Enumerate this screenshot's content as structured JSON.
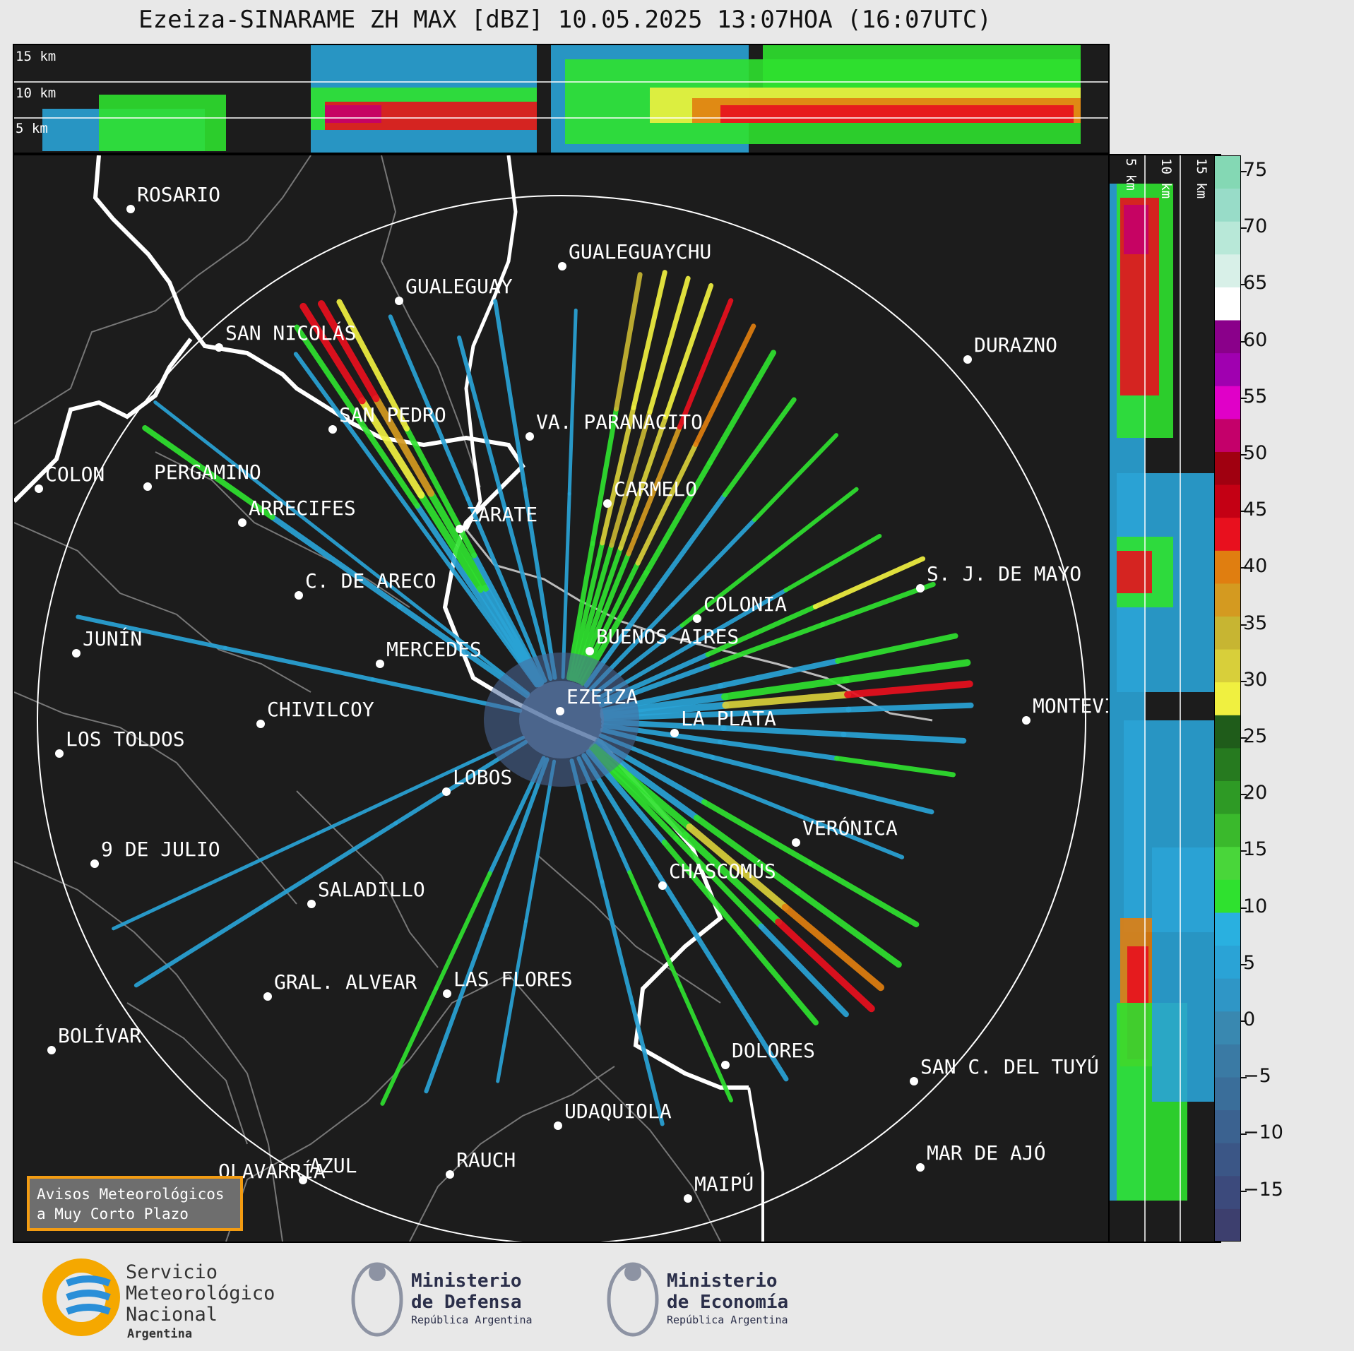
{
  "title": "Ezeiza-SINARAME ZH MAX [dBZ] 10.05.2025 13:07HOA (16:07UTC)",
  "height_labels": [
    "15 km",
    "10 km",
    "5 km"
  ],
  "cities": [
    {
      "name": "ROSARIO"
    },
    {
      "name": "GUALEGUAYCHU"
    },
    {
      "name": "GUALEGUAY"
    },
    {
      "name": "SAN NICOLÁS"
    },
    {
      "name": "DURAZNO"
    },
    {
      "name": "SAN PEDRO"
    },
    {
      "name": "VA. PARANACITO"
    },
    {
      "name": "COLON"
    },
    {
      "name": "PERGAMINO"
    },
    {
      "name": "CARMELO"
    },
    {
      "name": "ARRECIFES"
    },
    {
      "name": "ZÁRATE"
    },
    {
      "name": "S. J. DE MAYO"
    },
    {
      "name": "C. DE ARECO"
    },
    {
      "name": "COLONIA"
    },
    {
      "name": "JUNÍN"
    },
    {
      "name": "BUENOS AIRES"
    },
    {
      "name": "MERCEDES"
    },
    {
      "name": "EZEIZA"
    },
    {
      "name": "MONTEVIDEO"
    },
    {
      "name": "CHIVILCOY"
    },
    {
      "name": "LA PLATA"
    },
    {
      "name": "LOS TOLDOS"
    },
    {
      "name": "LOBOS"
    },
    {
      "name": "VERÓNICA"
    },
    {
      "name": "9 DE JULIO"
    },
    {
      "name": "CHASCOMÚS"
    },
    {
      "name": "SALADILLO"
    },
    {
      "name": "GRAL. ALVEAR"
    },
    {
      "name": "LAS FLORES"
    },
    {
      "name": "BOLÍVAR"
    },
    {
      "name": "DOLORES"
    },
    {
      "name": "SAN C. DEL TUYÚ"
    },
    {
      "name": "UDAQUIOLA"
    },
    {
      "name": "MAR DE AJÓ"
    },
    {
      "name": "AZUL"
    },
    {
      "name": "RAUCH"
    },
    {
      "name": "OLAVARRÍA"
    },
    {
      "name": "MAIPÚ"
    }
  ],
  "avisos": {
    "line1": "Avisos Meteorológicos",
    "line2": "a Muy Corto Plazo"
  },
  "colorbar": {
    "unit": "dBZ",
    "ticks": [
      "75",
      "70",
      "65",
      "60",
      "55",
      "50",
      "45",
      "40",
      "35",
      "30",
      "25",
      "20",
      "15",
      "10",
      "5",
      "0",
      "−5",
      "−10",
      "−15"
    ]
  },
  "logos": {
    "smn": {
      "line1": "Servicio",
      "line2": "Meteorológico",
      "line3": "Nacional",
      "line4": "Argentina"
    },
    "defensa": {
      "line1": "Ministerio",
      "line2": "de Defensa",
      "line3": "República Argentina"
    },
    "economia": {
      "line1": "Ministerio",
      "line2": "de Economía",
      "line3": "República Argentina"
    }
  }
}
